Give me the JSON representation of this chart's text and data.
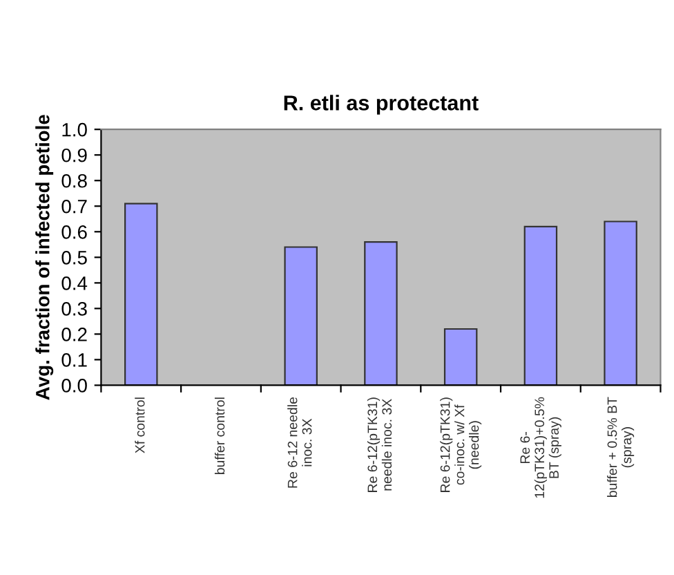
{
  "chart_data": {
    "type": "bar",
    "title": "R. etli as protectant",
    "ylabel": "Avg. fraction of infected petiole",
    "categories": [
      "Xf control",
      "buffer control",
      "Re 6-12 needle\ninoc. 3X",
      "Re 6-12(pTK31)\nneedle inoc. 3X",
      "Re 6-12(pTK31)\nco-inoc. w/ Xf\n(needle)",
      "Re 6-\n12(pTK31)+0.5%\nBT (spray)",
      "buffer + 0.5% BT\n(spray)"
    ],
    "values": [
      0.71,
      null,
      0.54,
      0.56,
      0.22,
      0.62,
      0.64
    ],
    "color": "#9999ff",
    "ylim": [
      0,
      1.0
    ],
    "yticks": [
      {
        "value": 0,
        "label": "0.0"
      },
      {
        "value": 0.1,
        "label": "0.1"
      },
      {
        "value": 0.2,
        "label": "0.2"
      },
      {
        "value": 0.3,
        "label": "0.3"
      },
      {
        "value": 0.4,
        "label": "0.4"
      },
      {
        "value": 0.5,
        "label": "0.5"
      },
      {
        "value": 0.6,
        "label": "0.6"
      },
      {
        "value": 0.7,
        "label": "0.7"
      },
      {
        "value": 0.8,
        "label": "0.8"
      },
      {
        "value": 0.9,
        "label": "0.9"
      },
      {
        "value": 1.0,
        "label": "1.0"
      }
    ],
    "grid": false,
    "legend": false
  }
}
